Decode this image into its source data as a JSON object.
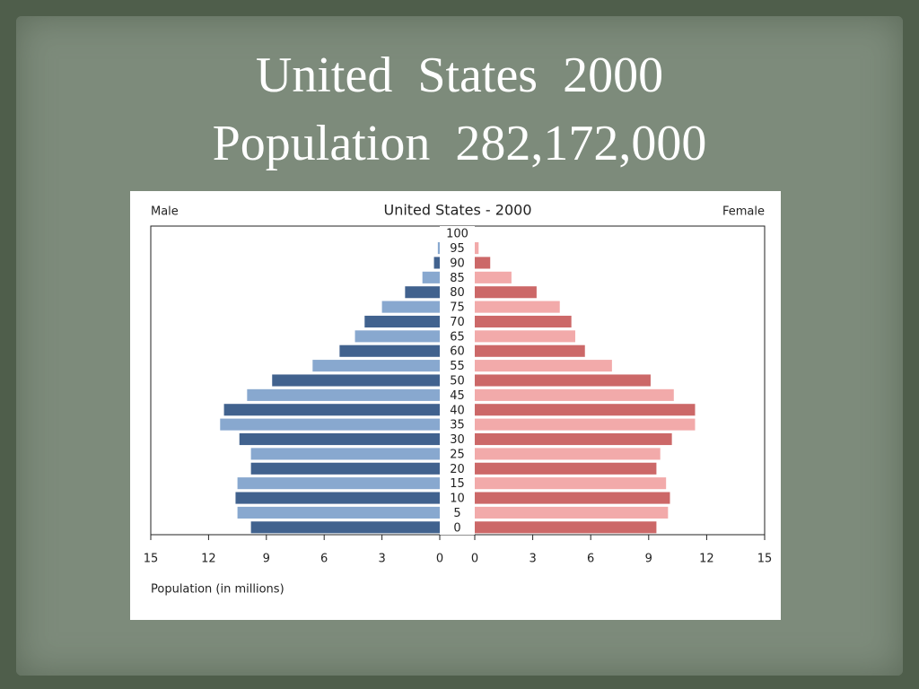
{
  "slide": {
    "title_lines": [
      "United  States  2000",
      "Population  282,172,000"
    ]
  },
  "chart_data": {
    "type": "pyramid",
    "title": "United States - 2000",
    "xlabel": "Population (in millions)",
    "categories": [
      "0",
      "5",
      "10",
      "15",
      "20",
      "25",
      "30",
      "35",
      "40",
      "45",
      "50",
      "55",
      "60",
      "65",
      "70",
      "75",
      "80",
      "85",
      "90",
      "95",
      "100"
    ],
    "series": [
      {
        "name": "Male",
        "side": "left",
        "colors": [
          "#41628e",
          "#88a8cf"
        ],
        "values": [
          9.8,
          10.5,
          10.6,
          10.5,
          9.8,
          9.8,
          10.4,
          11.4,
          11.2,
          10.0,
          8.7,
          6.6,
          5.2,
          4.4,
          3.9,
          3.0,
          1.8,
          0.9,
          0.3,
          0.1,
          0
        ]
      },
      {
        "name": "Female",
        "side": "right",
        "colors": [
          "#cc6868",
          "#f2aaaa"
        ],
        "values": [
          9.4,
          10.0,
          10.1,
          9.9,
          9.4,
          9.6,
          10.2,
          11.4,
          11.4,
          10.3,
          9.1,
          7.1,
          5.7,
          5.2,
          5.0,
          4.4,
          3.2,
          1.9,
          0.8,
          0.2,
          0
        ]
      }
    ],
    "xlim": [
      0,
      15
    ],
    "xticks": [
      0,
      3,
      6,
      9,
      12,
      15
    ]
  }
}
